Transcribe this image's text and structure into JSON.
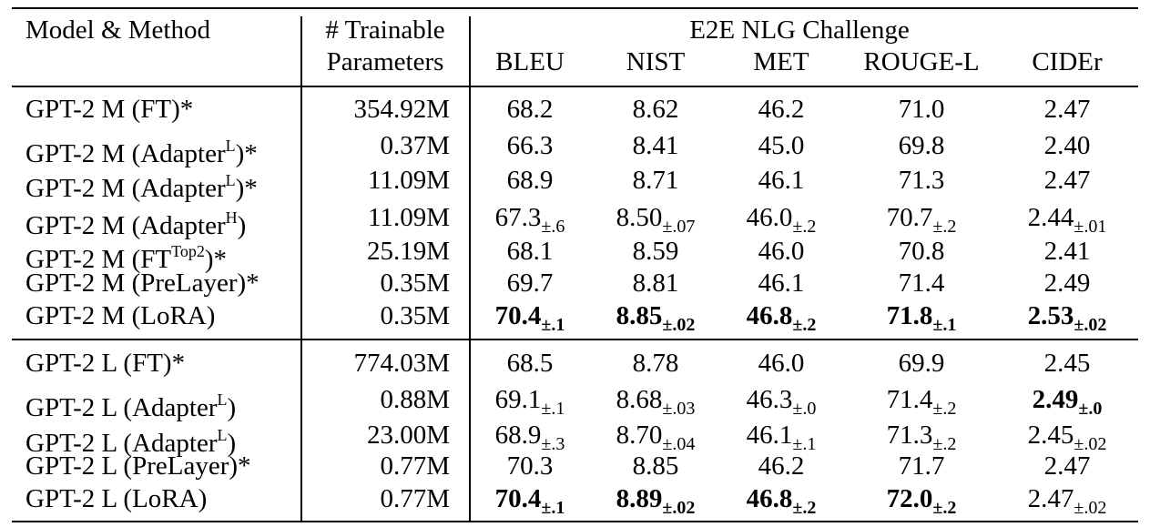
{
  "header": {
    "model": "Model & Method",
    "trainable_1": "# Trainable",
    "trainable_2": "Parameters",
    "group": "E2E NLG Challenge",
    "metrics": [
      "BLEU",
      "NIST",
      "MET",
      "ROUGE-L",
      "CIDEr"
    ]
  },
  "groups": [
    {
      "rows": [
        {
          "model": "GPT-2 M (FT",
          "sup": "",
          "tail": ")*",
          "params": "354.92M",
          "cells": [
            {
              "v": "68.2",
              "s": "",
              "b": false
            },
            {
              "v": "8.62",
              "s": "",
              "b": false
            },
            {
              "v": "46.2",
              "s": "",
              "b": false
            },
            {
              "v": "71.0",
              "s": "",
              "b": false
            },
            {
              "v": "2.47",
              "s": "",
              "b": false
            }
          ]
        },
        {
          "model": "GPT-2 M (Adapter",
          "sup": "L",
          "tail": ")*",
          "params": "0.37M",
          "cells": [
            {
              "v": "66.3",
              "s": "",
              "b": false
            },
            {
              "v": "8.41",
              "s": "",
              "b": false
            },
            {
              "v": "45.0",
              "s": "",
              "b": false
            },
            {
              "v": "69.8",
              "s": "",
              "b": false
            },
            {
              "v": "2.40",
              "s": "",
              "b": false
            }
          ]
        },
        {
          "model": "GPT-2 M (Adapter",
          "sup": "L",
          "tail": ")*",
          "params": "11.09M",
          "cells": [
            {
              "v": "68.9",
              "s": "",
              "b": false
            },
            {
              "v": "8.71",
              "s": "",
              "b": false
            },
            {
              "v": "46.1",
              "s": "",
              "b": false
            },
            {
              "v": "71.3",
              "s": "",
              "b": false
            },
            {
              "v": "2.47",
              "s": "",
              "b": false
            }
          ]
        },
        {
          "model": "GPT-2 M (Adapter",
          "sup": "H",
          "tail": ")",
          "params": "11.09M",
          "cells": [
            {
              "v": "67.3",
              "s": "±.6",
              "b": false
            },
            {
              "v": "8.50",
              "s": "±.07",
              "b": false
            },
            {
              "v": "46.0",
              "s": "±.2",
              "b": false
            },
            {
              "v": "70.7",
              "s": "±.2",
              "b": false
            },
            {
              "v": "2.44",
              "s": "±.01",
              "b": false
            }
          ]
        },
        {
          "model": "GPT-2 M (FT",
          "sup": "Top2",
          "tail": ")*",
          "params": "25.19M",
          "cells": [
            {
              "v": "68.1",
              "s": "",
              "b": false
            },
            {
              "v": "8.59",
              "s": "",
              "b": false
            },
            {
              "v": "46.0",
              "s": "",
              "b": false
            },
            {
              "v": "70.8",
              "s": "",
              "b": false
            },
            {
              "v": "2.41",
              "s": "",
              "b": false
            }
          ]
        },
        {
          "model": "GPT-2 M (PreLayer)*",
          "sup": "",
          "tail": "",
          "params": "0.35M",
          "cells": [
            {
              "v": "69.7",
              "s": "",
              "b": false
            },
            {
              "v": "8.81",
              "s": "",
              "b": false
            },
            {
              "v": "46.1",
              "s": "",
              "b": false
            },
            {
              "v": "71.4",
              "s": "",
              "b": false
            },
            {
              "v": "2.49",
              "s": "",
              "b": false
            }
          ]
        },
        {
          "model": "GPT-2 M (LoRA)",
          "sup": "",
          "tail": "",
          "params": "0.35M",
          "cells": [
            {
              "v": "70.4",
              "s": "±.1",
              "b": true
            },
            {
              "v": "8.85",
              "s": "±.02",
              "b": true
            },
            {
              "v": "46.8",
              "s": "±.2",
              "b": true
            },
            {
              "v": "71.8",
              "s": "±.1",
              "b": true
            },
            {
              "v": "2.53",
              "s": "±.02",
              "b": true
            }
          ]
        }
      ]
    },
    {
      "rows": [
        {
          "model": "GPT-2 L (FT)*",
          "sup": "",
          "tail": "",
          "params": "774.03M",
          "cells": [
            {
              "v": "68.5",
              "s": "",
              "b": false
            },
            {
              "v": "8.78",
              "s": "",
              "b": false
            },
            {
              "v": "46.0",
              "s": "",
              "b": false
            },
            {
              "v": "69.9",
              "s": "",
              "b": false
            },
            {
              "v": "2.45",
              "s": "",
              "b": false
            }
          ]
        },
        {
          "model": "GPT-2 L (Adapter",
          "sup": "L",
          "tail": ")",
          "params": "0.88M",
          "cells": [
            {
              "v": "69.1",
              "s": "±.1",
              "b": false
            },
            {
              "v": "8.68",
              "s": "±.03",
              "b": false
            },
            {
              "v": "46.3",
              "s": "±.0",
              "b": false
            },
            {
              "v": "71.4",
              "s": "±.2",
              "b": false
            },
            {
              "v": "2.49",
              "s": "±.0",
              "b": true
            }
          ]
        },
        {
          "model": "GPT-2 L (Adapter",
          "sup": "L",
          "tail": ")",
          "params": "23.00M",
          "cells": [
            {
              "v": "68.9",
              "s": "±.3",
              "b": false
            },
            {
              "v": "8.70",
              "s": "±.04",
              "b": false
            },
            {
              "v": "46.1",
              "s": "±.1",
              "b": false
            },
            {
              "v": "71.3",
              "s": "±.2",
              "b": false
            },
            {
              "v": "2.45",
              "s": "±.02",
              "b": false
            }
          ]
        },
        {
          "model": "GPT-2 L (PreLayer)*",
          "sup": "",
          "tail": "",
          "params": "0.77M",
          "cells": [
            {
              "v": "70.3",
              "s": "",
              "b": false
            },
            {
              "v": "8.85",
              "s": "",
              "b": false
            },
            {
              "v": "46.2",
              "s": "",
              "b": false
            },
            {
              "v": "71.7",
              "s": "",
              "b": false
            },
            {
              "v": "2.47",
              "s": "",
              "b": false
            }
          ]
        },
        {
          "model": "GPT-2 L (LoRA)",
          "sup": "",
          "tail": "",
          "params": "0.77M",
          "cells": [
            {
              "v": "70.4",
              "s": "±.1",
              "b": true
            },
            {
              "v": "8.89",
              "s": "±.02",
              "b": true
            },
            {
              "v": "46.8",
              "s": "±.2",
              "b": true
            },
            {
              "v": "72.0",
              "s": "±.2",
              "b": true
            },
            {
              "v": "2.47",
              "s": "±.02",
              "b": false
            }
          ]
        }
      ]
    }
  ]
}
